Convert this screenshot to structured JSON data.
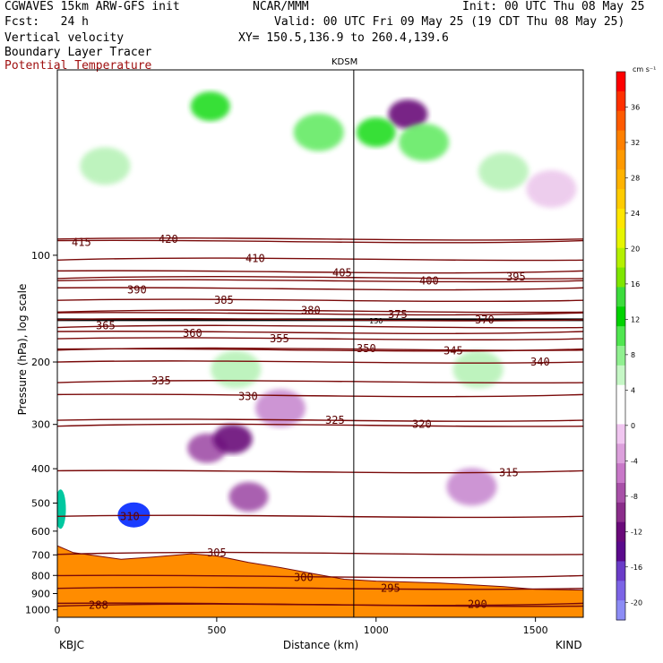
{
  "header": {
    "model": "CGWAVES 15km ARW-GFS init",
    "forecast": "Fcst:   24 h",
    "field1": "Vertical velocity",
    "field2": "Boundary Layer Tracer",
    "field3": "Potential Temperature",
    "institution": "NCAR/MMM",
    "init": "Init: 00 UTC Thu 08 May 25",
    "valid": "Valid: 00 UTC Fri 09 May 25 (19 CDT Thu 08 May 25)",
    "xy": "XY= 150.5,136.9 to 260.4,139.6"
  },
  "colors": {
    "theta_line": "#7a0a0a",
    "terrain": "#ff8c00",
    "tropopause": "#000000"
  },
  "chart_data": {
    "type": "heatmap",
    "title": "Vertical velocity",
    "xlabel": "Distance (km)",
    "ylabel": "Pressure (hPa), log scale",
    "x_range": [
      0,
      1650
    ],
    "y_range_hpa": [
      1050,
      30
    ],
    "y_scale": "log",
    "x_ticks": [
      0,
      500,
      1000,
      1500
    ],
    "y_ticks": [
      100,
      200,
      300,
      400,
      500,
      600,
      700,
      800,
      900,
      1000
    ],
    "station_left": "KBJC",
    "station_right": "KIND",
    "station_mid": "KDSM",
    "station_mid_km": 930,
    "tropopause_label": "150",
    "colorbar": {
      "unit": "cm s⁻¹",
      "ticks": [
        36,
        32,
        28,
        24,
        20,
        16,
        12,
        8,
        4,
        0,
        -4,
        -8,
        -12,
        -16,
        -20
      ],
      "colors": [
        "#ff0000",
        "#ff3000",
        "#ff5a00",
        "#ff8000",
        "#ff9a00",
        "#ffb300",
        "#ffcc00",
        "#ffe600",
        "#e6f500",
        "#b4f000",
        "#7ee600",
        "#3cdc3c",
        "#00d200",
        "#50e650",
        "#90f090",
        "#c6f7c6",
        "#ffffff",
        "#ffffff",
        "#f0c6f0",
        "#dca0dc",
        "#c878c8",
        "#a850a8",
        "#8a2d8a",
        "#6a0a7a",
        "#5a0a8c",
        "#6a3cc8",
        "#7c64e6",
        "#8c8cf5"
      ]
    },
    "theta_contours": [
      {
        "value": 415,
        "p": 92
      },
      {
        "value": 420,
        "p": 90
      },
      {
        "value": 410,
        "p": 102
      },
      {
        "value": 405,
        "p": 112
      },
      {
        "value": 400,
        "p": 118
      },
      {
        "value": 395,
        "p": 115
      },
      {
        "value": 390,
        "p": 125
      },
      {
        "value": 385,
        "p": 134
      },
      {
        "value": 380,
        "p": 143
      },
      {
        "value": 375,
        "p": 147
      },
      {
        "value": 370,
        "p": 152
      },
      {
        "value": 365,
        "p": 158
      },
      {
        "value": 360,
        "p": 166
      },
      {
        "value": 355,
        "p": 172
      },
      {
        "value": 350,
        "p": 183
      },
      {
        "value": 345,
        "p": 186
      },
      {
        "value": 340,
        "p": 200
      },
      {
        "value": 335,
        "p": 226
      },
      {
        "value": 330,
        "p": 250
      },
      {
        "value": 325,
        "p": 292
      },
      {
        "value": 320,
        "p": 300
      },
      {
        "value": 315,
        "p": 410
      },
      {
        "value": 310,
        "p": 545
      },
      {
        "value": 305,
        "p": 690
      },
      {
        "value": 300,
        "p": 810
      },
      {
        "value": 295,
        "p": 870
      },
      {
        "value": 290,
        "p": 965
      },
      {
        "value": 288,
        "p": 970
      }
    ],
    "terrain_hpa": [
      [
        0,
        660
      ],
      [
        50,
        690
      ],
      [
        100,
        700
      ],
      [
        200,
        720
      ],
      [
        300,
        710
      ],
      [
        420,
        695
      ],
      [
        500,
        705
      ],
      [
        600,
        735
      ],
      [
        700,
        760
      ],
      [
        800,
        790
      ],
      [
        900,
        820
      ],
      [
        1000,
        830
      ],
      [
        1100,
        835
      ],
      [
        1200,
        840
      ],
      [
        1300,
        850
      ],
      [
        1400,
        860
      ],
      [
        1500,
        875
      ],
      [
        1650,
        880
      ]
    ],
    "bl_tracer_blobs": [
      {
        "km": 240,
        "p": 540,
        "kind": "blue"
      },
      {
        "km": 10,
        "p": 520,
        "kind": "mix"
      }
    ],
    "w_features": [
      {
        "km": 470,
        "p": 350,
        "w": -8
      },
      {
        "km": 550,
        "p": 330,
        "w": -12
      },
      {
        "km": 700,
        "p": 270,
        "w": -6
      },
      {
        "km": 600,
        "p": 480,
        "w": -8
      },
      {
        "km": 1300,
        "p": 450,
        "w": -6
      },
      {
        "km": 1100,
        "p": 40,
        "w": -12
      },
      {
        "km": 1150,
        "p": 48,
        "w": 6
      },
      {
        "km": 1000,
        "p": 45,
        "w": 8
      },
      {
        "km": 820,
        "p": 45,
        "w": 6
      },
      {
        "km": 480,
        "p": 38,
        "w": 8
      },
      {
        "km": 150,
        "p": 56,
        "w": 4
      },
      {
        "km": 560,
        "p": 210,
        "w": 4
      },
      {
        "km": 1320,
        "p": 210,
        "w": 4
      },
      {
        "km": 1400,
        "p": 58,
        "w": 4
      },
      {
        "km": 1550,
        "p": 65,
        "w": -4
      }
    ]
  }
}
